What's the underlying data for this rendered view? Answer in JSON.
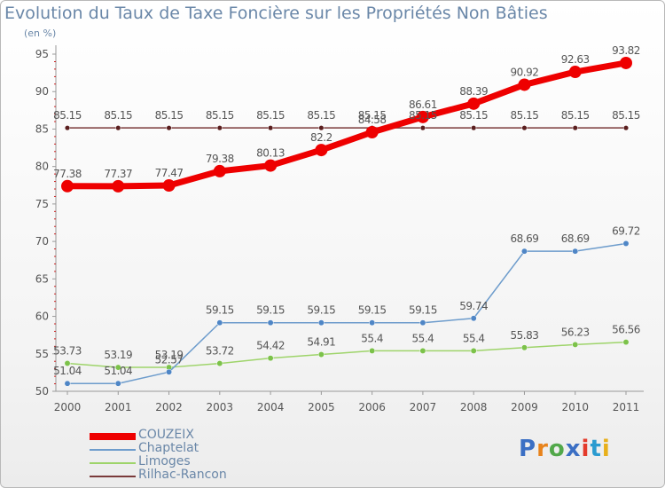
{
  "title": "Evolution du Taux de Taxe Foncière sur les Propriétés Non Bâties",
  "subtitle": "(en %)",
  "logo": {
    "text": "Proxiti",
    "colors": [
      "#3b6fc4",
      "#e8831b",
      "#52a84a",
      "#3b6fc4",
      "#e43b2c",
      "#2a9bd0",
      "#e8b01b"
    ]
  },
  "chart_data": {
    "type": "line",
    "title": "Evolution du Taux de Taxe Foncière sur les Propriétés Non Bâties",
    "ylabel": "(en %)",
    "xlabel": "",
    "categories": [
      "2000",
      "2001",
      "2002",
      "2003",
      "2004",
      "2005",
      "2006",
      "2007",
      "2008",
      "2009",
      "2010",
      "2011"
    ],
    "ylim": [
      50,
      95
    ],
    "yticks": [
      50,
      55,
      60,
      65,
      70,
      75,
      80,
      85,
      90,
      95
    ],
    "grid": false,
    "legend_position": "bottom-left",
    "series": [
      {
        "name": "COUZEIX",
        "color": "#ee0000",
        "values": [
          77.38,
          77.37,
          77.47,
          79.38,
          80.13,
          82.2,
          84.58,
          86.61,
          88.39,
          90.92,
          92.63,
          93.82
        ],
        "labels": [
          "77.38",
          "77.37",
          "77.47",
          "79.38",
          "80.13",
          "82.2",
          "84.58",
          "86.61",
          "88.39",
          "90.92",
          "92.63",
          "93.82"
        ]
      },
      {
        "name": "Chaptelat",
        "color": "#6d9ccc",
        "values": [
          51.04,
          51.04,
          52.57,
          59.15,
          59.15,
          59.15,
          59.15,
          59.15,
          59.74,
          68.69,
          68.69,
          69.72
        ],
        "labels": [
          "51.04",
          "51.04",
          "52.57",
          "59.15",
          "59.15",
          "59.15",
          "59.15",
          "59.15",
          "59.74",
          "68.69",
          "68.69",
          "69.72"
        ]
      },
      {
        "name": "Limoges",
        "color": "#9ed46a",
        "values": [
          53.73,
          53.19,
          53.19,
          53.72,
          54.42,
          54.91,
          55.4,
          55.4,
          55.4,
          55.83,
          56.23,
          56.56
        ],
        "labels": [
          "53.73",
          "53.19",
          "53.19",
          "53.72",
          "54.42",
          "54.91",
          "55.4",
          "55.4",
          "55.4",
          "55.83",
          "56.23",
          "56.56"
        ]
      },
      {
        "name": "Rilhac-Rancon",
        "color": "#7a3a3a",
        "values": [
          85.15,
          85.15,
          85.15,
          85.15,
          85.15,
          85.15,
          85.15,
          85.15,
          85.15,
          85.15,
          85.15,
          85.15
        ],
        "labels": [
          "85.15",
          "85.15",
          "85.15",
          "85.15",
          "85.15",
          "85.15",
          "85.15",
          "85.15",
          "85.15",
          "85.15",
          "85.15",
          "85.15"
        ]
      }
    ]
  }
}
